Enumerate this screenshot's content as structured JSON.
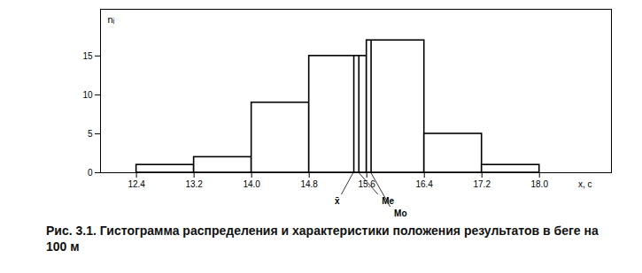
{
  "chart_data": {
    "type": "histogram",
    "caption": "Рис. 3.1. Гистограмма распределения и характеристики положения результатов в беге на 100 м",
    "x_label": "x, с",
    "y_label": "nᵢ",
    "bins": [
      12.4,
      13.2,
      14.0,
      14.8,
      15.6,
      16.4,
      17.2,
      18.0
    ],
    "values": [
      1,
      2,
      9,
      15,
      17,
      5,
      1
    ],
    "color": "#000000",
    "xlim": [
      11.9,
      19.0
    ],
    "ylim": [
      0,
      21
    ],
    "xticks": [
      12.4,
      13.2,
      {
        "value": 14,
        "label": "14.0"
      },
      14.8,
      15.6,
      16.4,
      17.2,
      {
        "value": 18,
        "label": "18.0"
      }
    ],
    "yticks": [
      0,
      5,
      10,
      15
    ],
    "grid": false,
    "annotations": [
      {
        "label": "x̄",
        "value": 15.42
      },
      {
        "label": "Me",
        "value": 15.49
      },
      {
        "label": "Mo",
        "value": 15.66
      }
    ]
  }
}
